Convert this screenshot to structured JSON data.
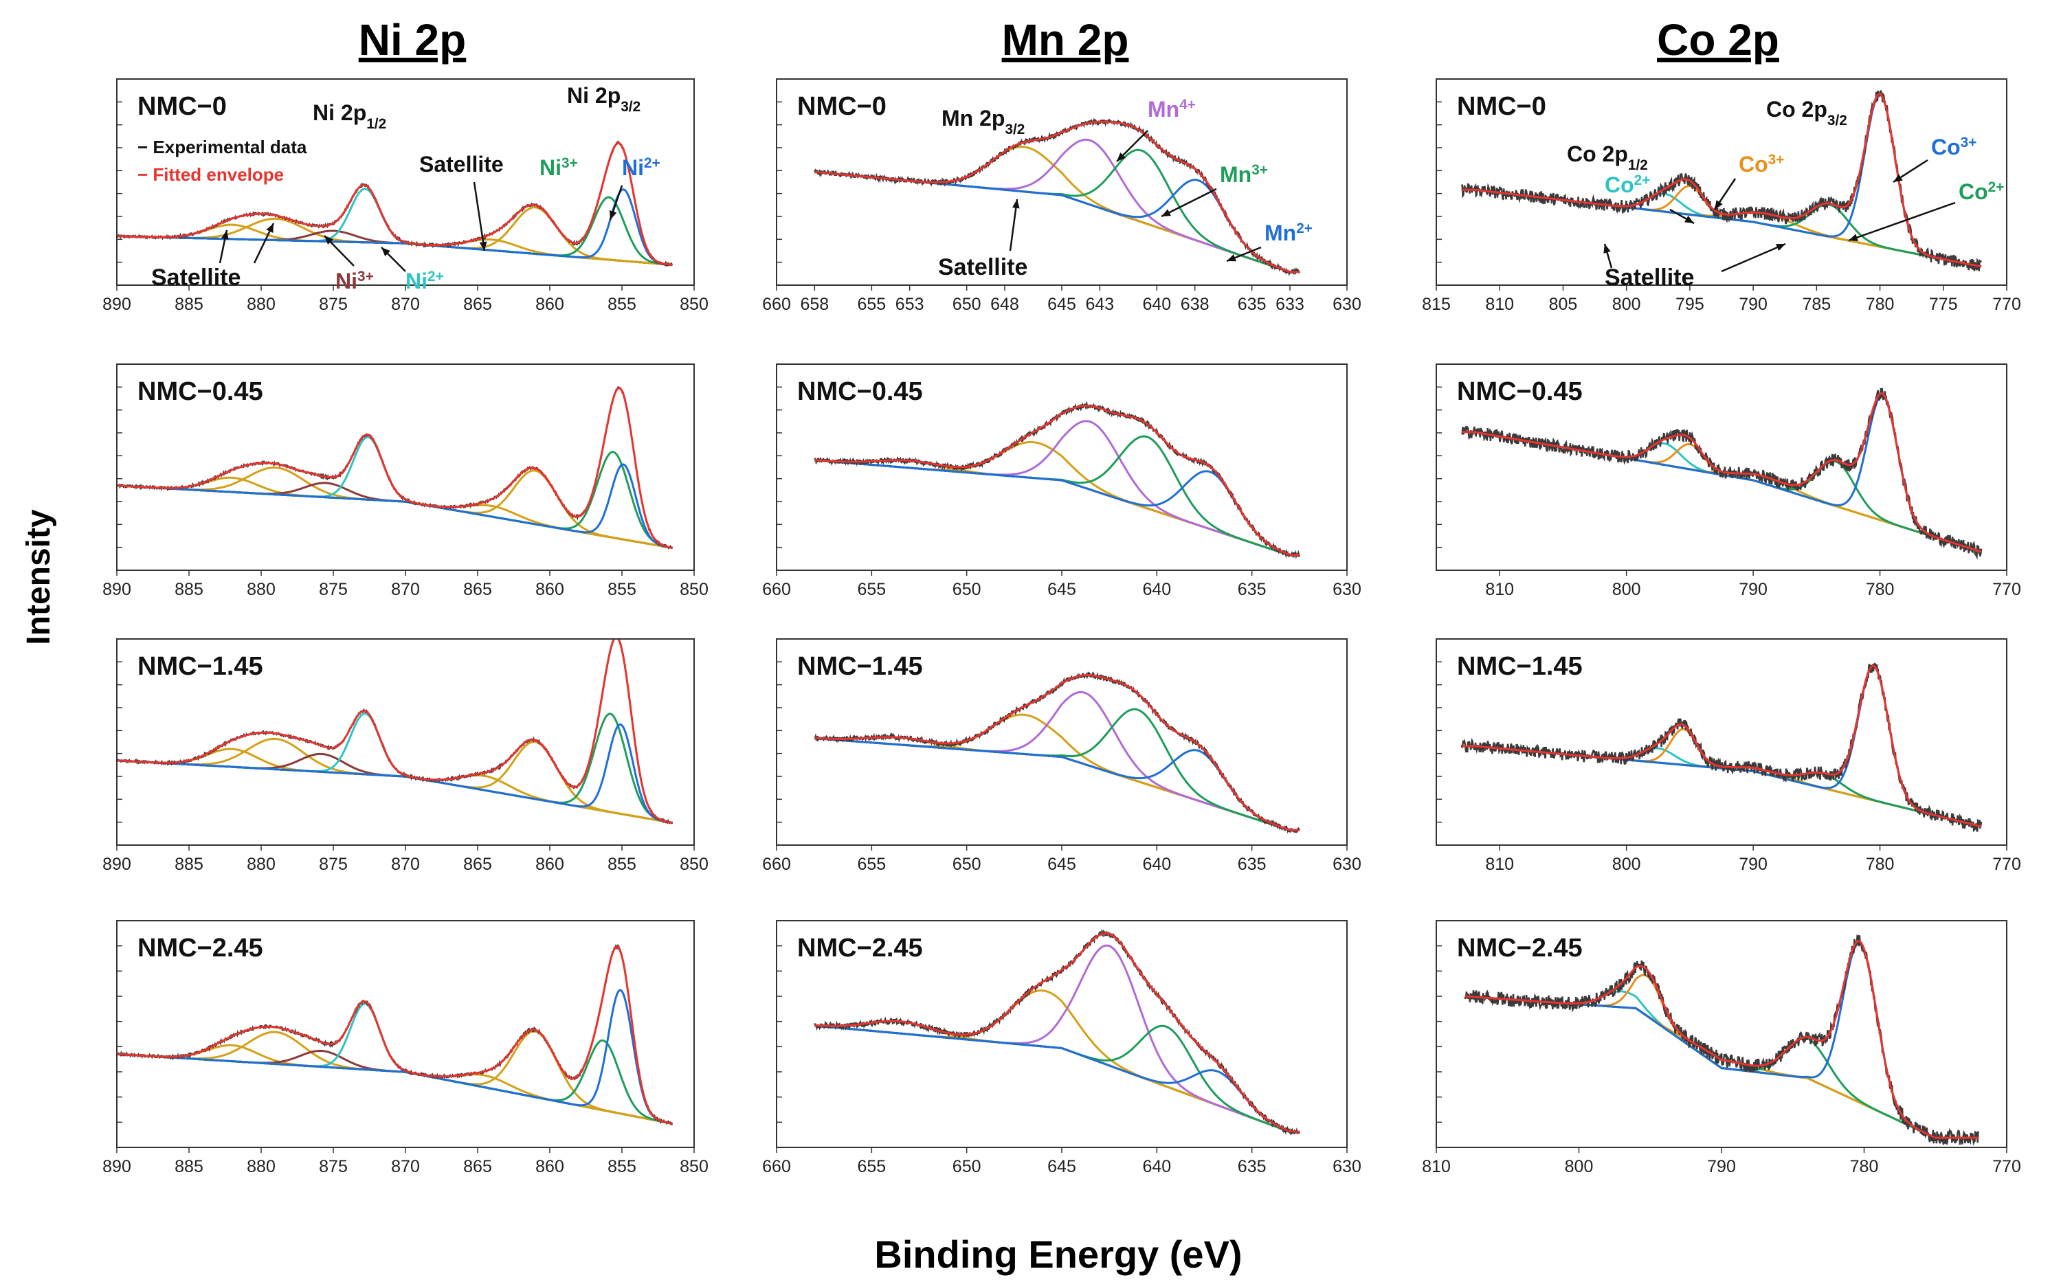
{
  "figure": {
    "ylabel": "Intensity",
    "xlabel": "Binding Energy (eV)"
  },
  "colors": {
    "experimental": "#3b3b3b",
    "envelope": "#e8342e",
    "background_ni": "#5b9bd5",
    "background_mn": "#8b3a2e",
    "background_co": "#8f8f00",
    "satellite": "#d4a017",
    "ni3": "#1e9e5a",
    "ni2": "#1f6fd6",
    "ni2_half": "#2ec4c4",
    "mn4": "#b06bd6",
    "co3": "#e8901a",
    "co2": "#2ec4c4"
  },
  "chart_data": [
    {
      "type": "line",
      "element": "Ni 2p",
      "column_title": "Ni 2p",
      "sample": "NMC−0",
      "xlim": [
        890,
        850
      ],
      "xticks": [
        890,
        885,
        880,
        875,
        870,
        865,
        860,
        855,
        850
      ],
      "legend": [
        "− Experimental data",
        "− Fitted envelope"
      ],
      "annotations": {
        "ni2p12": "Ni 2p1/2",
        "ni2p32": "Ni 2p3/2",
        "satellite_left": "Satellite",
        "satellite_right": "Satellite",
        "ni3_left": "Ni3+",
        "ni2_left": "Ni2+",
        "ni3_right": "Ni3+",
        "ni2_right": "Ni2+"
      },
      "background": [
        [
          890,
          0.22
        ],
        [
          870,
          0.18
        ],
        [
          850,
          0.05
        ]
      ],
      "peaks": [
        {
          "name": "Satellite",
          "center": 882.0,
          "fwhm": 4.0,
          "height": 0.08
        },
        {
          "name": "Satellite",
          "center": 879.0,
          "fwhm": 4.5,
          "height": 0.12
        },
        {
          "name": "Ni3+",
          "center": 875.0,
          "fwhm": 3.5,
          "height": 0.06
        },
        {
          "name": "Ni2+",
          "center": 872.8,
          "fwhm": 2.4,
          "height": 0.3
        },
        {
          "name": "Satellite",
          "center": 864.0,
          "fwhm": 4.0,
          "height": 0.06
        },
        {
          "name": "Satellite",
          "center": 861.0,
          "fwhm": 3.5,
          "height": 0.26
        },
        {
          "name": "Ni3+",
          "center": 855.9,
          "fwhm": 2.5,
          "height": 0.35
        },
        {
          "name": "Ni2+",
          "center": 854.9,
          "fwhm": 2.0,
          "height": 0.4
        }
      ]
    },
    {
      "type": "line",
      "element": "Mn 2p",
      "column_title": "Mn 2p",
      "sample": "NMC−0",
      "xlim": [
        660,
        630
      ],
      "xticks": [
        660,
        658,
        655,
        653,
        650,
        648,
        645,
        643,
        640,
        638,
        635,
        633,
        630
      ],
      "annotations": {
        "mn2p32": "Mn 2p3/2",
        "satellite": "Satellite",
        "mn4": "Mn4+",
        "mn3": "Mn3+",
        "mn2": "Mn2+"
      },
      "background": [
        [
          660,
          0.6
        ],
        [
          645,
          0.45
        ],
        [
          633,
          0.02
        ]
      ],
      "peaks": [
        {
          "name": "Satellite",
          "center": 647.0,
          "fwhm": 4.0,
          "height": 0.25
        },
        {
          "name": "Mn4+",
          "center": 643.5,
          "fwhm": 3.6,
          "height": 0.36
        },
        {
          "name": "Mn3+",
          "center": 640.8,
          "fwhm": 3.4,
          "height": 0.4
        },
        {
          "name": "Mn2+",
          "center": 637.8,
          "fwhm": 3.2,
          "height": 0.34
        }
      ]
    },
    {
      "type": "line",
      "element": "Co 2p",
      "column_title": "Co 2p",
      "sample": "NMC−0",
      "xlim": [
        815,
        770
      ],
      "xticks": [
        815,
        810,
        805,
        800,
        795,
        790,
        785,
        780,
        775,
        770
      ],
      "annotations": {
        "co2p12": "Co 2p1/2",
        "co2p32": "Co 2p3/2",
        "satellite": "Satellite",
        "co2_left": "Co2+",
        "co3_left": "Co3+",
        "co3_right": "Co3+",
        "co2_right": "Co2+"
      },
      "background": [
        [
          812,
          0.48
        ],
        [
          790,
          0.3
        ],
        [
          772,
          0.05
        ]
      ],
      "peaks": [
        {
          "name": "Co2+",
          "center": 797.0,
          "fwhm": 3.0,
          "height": 0.1
        },
        {
          "name": "Co3+",
          "center": 795.0,
          "fwhm": 2.5,
          "height": 0.16
        },
        {
          "name": "Satellite",
          "center": 789.0,
          "fwhm": 5.0,
          "height": 0.06
        },
        {
          "name": "Co2+",
          "center": 784.0,
          "fwhm": 3.5,
          "height": 0.18
        },
        {
          "name": "Co3+",
          "center": 780.0,
          "fwhm": 2.8,
          "height": 0.85
        }
      ]
    },
    {
      "type": "line",
      "element": "Ni 2p",
      "sample": "NMC−0.45",
      "xlim": [
        890,
        850
      ],
      "xticks": [
        890,
        885,
        880,
        875,
        870,
        865,
        860,
        855,
        850
      ],
      "background": [
        [
          890,
          0.42
        ],
        [
          870,
          0.33
        ],
        [
          850,
          0.05
        ]
      ],
      "peaks": [
        {
          "name": "Satellite",
          "center": 882.0,
          "fwhm": 4.0,
          "height": 0.08
        },
        {
          "name": "Satellite",
          "center": 879.0,
          "fwhm": 4.5,
          "height": 0.15
        },
        {
          "name": "Ni3+",
          "center": 875.5,
          "fwhm": 3.5,
          "height": 0.08
        },
        {
          "name": "Ni2+",
          "center": 872.6,
          "fwhm": 2.4,
          "height": 0.35
        },
        {
          "name": "Satellite",
          "center": 864.0,
          "fwhm": 4.0,
          "height": 0.06
        },
        {
          "name": "Satellite",
          "center": 861.0,
          "fwhm": 3.5,
          "height": 0.3
        },
        {
          "name": "Ni3+",
          "center": 855.6,
          "fwhm": 2.6,
          "height": 0.48
        },
        {
          "name": "Ni2+",
          "center": 854.9,
          "fwhm": 2.0,
          "height": 0.42
        }
      ]
    },
    {
      "type": "line",
      "element": "Mn 2p",
      "sample": "NMC−0.45",
      "xlim": [
        660,
        630
      ],
      "xticks": [
        660,
        655,
        650,
        645,
        640,
        635,
        630
      ],
      "background": [
        [
          660,
          0.58
        ],
        [
          645,
          0.45
        ],
        [
          633,
          0.03
        ]
      ],
      "peaks": [
        {
          "name": "Satellite",
          "center": 653.0,
          "fwhm": 4.0,
          "height": 0.04
        },
        {
          "name": "Satellite",
          "center": 646.5,
          "fwhm": 4.0,
          "height": 0.2
        },
        {
          "name": "Mn4+",
          "center": 643.5,
          "fwhm": 3.6,
          "height": 0.38
        },
        {
          "name": "Mn3+",
          "center": 640.5,
          "fwhm": 3.4,
          "height": 0.4
        },
        {
          "name": "Mn2+",
          "center": 637.2,
          "fwhm": 3.2,
          "height": 0.32
        }
      ]
    },
    {
      "type": "line",
      "element": "Co 2p",
      "sample": "NMC−0.45",
      "xlim": [
        815,
        770
      ],
      "xticks": [
        810,
        800,
        790,
        780,
        770
      ],
      "background": [
        [
          812,
          0.72
        ],
        [
          790,
          0.45
        ],
        [
          772,
          0.05
        ]
      ],
      "peaks": [
        {
          "name": "Co2+",
          "center": 797.0,
          "fwhm": 3.0,
          "height": 0.12
        },
        {
          "name": "Co3+",
          "center": 795.0,
          "fwhm": 2.5,
          "height": 0.14
        },
        {
          "name": "Satellite",
          "center": 789.0,
          "fwhm": 5.0,
          "height": 0.04
        },
        {
          "name": "Co2+",
          "center": 783.5,
          "fwhm": 3.5,
          "height": 0.25
        },
        {
          "name": "Co3+",
          "center": 779.8,
          "fwhm": 2.8,
          "height": 0.7
        }
      ]
    },
    {
      "type": "line",
      "element": "Ni 2p",
      "sample": "NMC−1.45",
      "xlim": [
        890,
        850
      ],
      "xticks": [
        890,
        885,
        880,
        875,
        870,
        865,
        860,
        855,
        850
      ],
      "background": [
        [
          890,
          0.42
        ],
        [
          870,
          0.33
        ],
        [
          850,
          0.05
        ]
      ],
      "peaks": [
        {
          "name": "Satellite",
          "center": 882.0,
          "fwhm": 4.0,
          "height": 0.1
        },
        {
          "name": "Satellite",
          "center": 879.0,
          "fwhm": 4.5,
          "height": 0.17
        },
        {
          "name": "Ni3+",
          "center": 875.8,
          "fwhm": 3.5,
          "height": 0.1
        },
        {
          "name": "Ni2+",
          "center": 872.8,
          "fwhm": 2.4,
          "height": 0.34
        },
        {
          "name": "Satellite",
          "center": 864.5,
          "fwhm": 4.0,
          "height": 0.08
        },
        {
          "name": "Satellite",
          "center": 861.0,
          "fwhm": 3.5,
          "height": 0.32
        },
        {
          "name": "Ni3+",
          "center": 855.8,
          "fwhm": 2.6,
          "height": 0.55
        },
        {
          "name": "Ni2+",
          "center": 855.1,
          "fwhm": 2.0,
          "height": 0.5
        }
      ]
    },
    {
      "type": "line",
      "element": "Mn 2p",
      "sample": "NMC−1.45",
      "xlim": [
        660,
        630
      ],
      "xticks": [
        660,
        655,
        650,
        645,
        640,
        635,
        630
      ],
      "background": [
        [
          660,
          0.56
        ],
        [
          645,
          0.44
        ],
        [
          633,
          0.03
        ]
      ],
      "peaks": [
        {
          "name": "Satellite",
          "center": 653.5,
          "fwhm": 4.0,
          "height": 0.04
        },
        {
          "name": "Satellite",
          "center": 647.0,
          "fwhm": 4.0,
          "height": 0.22
        },
        {
          "name": "Mn4+",
          "center": 643.8,
          "fwhm": 3.6,
          "height": 0.4
        },
        {
          "name": "Mn3+",
          "center": 641.0,
          "fwhm": 3.4,
          "height": 0.4
        },
        {
          "name": "Mn2+",
          "center": 637.8,
          "fwhm": 3.2,
          "height": 0.28
        }
      ]
    },
    {
      "type": "line",
      "element": "Co 2p",
      "sample": "NMC−1.45",
      "xlim": [
        815,
        770
      ],
      "xticks": [
        810,
        800,
        790,
        780,
        770
      ],
      "background": [
        [
          812,
          0.5
        ],
        [
          790,
          0.36
        ],
        [
          772,
          0.05
        ]
      ],
      "peaks": [
        {
          "name": "Co2+",
          "center": 797.5,
          "fwhm": 3.0,
          "height": 0.08
        },
        {
          "name": "Co3+",
          "center": 795.5,
          "fwhm": 2.4,
          "height": 0.2
        },
        {
          "name": "Satellite",
          "center": 789.5,
          "fwhm": 5.0,
          "height": 0.02
        },
        {
          "name": "Co2+",
          "center": 784.5,
          "fwhm": 3.5,
          "height": 0.08
        },
        {
          "name": "Co3+",
          "center": 780.5,
          "fwhm": 2.8,
          "height": 0.75
        }
      ]
    },
    {
      "type": "line",
      "element": "Ni 2p",
      "sample": "NMC−2.45",
      "xlim": [
        890,
        850
      ],
      "xticks": [
        890,
        885,
        880,
        875,
        870,
        865,
        860,
        855,
        850
      ],
      "background": [
        [
          890,
          0.42
        ],
        [
          870,
          0.33
        ],
        [
          850,
          0.05
        ]
      ],
      "peaks": [
        {
          "name": "Satellite",
          "center": 882.0,
          "fwhm": 4.0,
          "height": 0.08
        },
        {
          "name": "Satellite",
          "center": 879.0,
          "fwhm": 4.5,
          "height": 0.16
        },
        {
          "name": "Ni3+",
          "center": 875.8,
          "fwhm": 3.5,
          "height": 0.08
        },
        {
          "name": "Ni2+",
          "center": 872.8,
          "fwhm": 2.4,
          "height": 0.33
        },
        {
          "name": "Satellite",
          "center": 864.5,
          "fwhm": 4.0,
          "height": 0.06
        },
        {
          "name": "Satellite",
          "center": 861.0,
          "fwhm": 3.5,
          "height": 0.33
        },
        {
          "name": "Ni3+",
          "center": 856.3,
          "fwhm": 2.6,
          "height": 0.35
        },
        {
          "name": "Ni2+",
          "center": 855.1,
          "fwhm": 2.0,
          "height": 0.62
        }
      ]
    },
    {
      "type": "line",
      "element": "Mn 2p",
      "sample": "NMC−2.45",
      "xlim": [
        660,
        630
      ],
      "xticks": [
        660,
        655,
        650,
        645,
        640,
        635,
        630
      ],
      "background": [
        [
          660,
          0.58
        ],
        [
          645,
          0.45
        ],
        [
          633,
          0.03
        ]
      ],
      "peaks": [
        {
          "name": "Satellite",
          "center": 653.5,
          "fwhm": 4.0,
          "height": 0.06
        },
        {
          "name": "Satellite",
          "center": 646.0,
          "fwhm": 4.0,
          "height": 0.28
        },
        {
          "name": "Mn4+",
          "center": 642.5,
          "fwhm": 3.6,
          "height": 0.6
        },
        {
          "name": "Mn3+",
          "center": 639.5,
          "fwhm": 3.2,
          "height": 0.3
        },
        {
          "name": "Mn2+",
          "center": 636.8,
          "fwhm": 3.0,
          "height": 0.17
        }
      ]
    },
    {
      "type": "line",
      "element": "Co 2p",
      "sample": "NMC−2.45",
      "xlim": [
        810,
        770
      ],
      "xticks": [
        810,
        800,
        790,
        780,
        770
      ],
      "background": [
        [
          810,
          0.72
        ],
        [
          796,
          0.65
        ],
        [
          790,
          0.35
        ],
        [
          784,
          0.3
        ],
        [
          775,
          0.0
        ]
      ],
      "peaks": [
        {
          "name": "Co2+",
          "center": 797.0,
          "fwhm": 3.0,
          "height": 0.08
        },
        {
          "name": "Co3+",
          "center": 795.2,
          "fwhm": 2.4,
          "height": 0.2
        },
        {
          "name": "Satellite",
          "center": 790.0,
          "fwhm": 5.0,
          "height": 0.04
        },
        {
          "name": "Co2+",
          "center": 784.0,
          "fwhm": 3.5,
          "height": 0.2
        },
        {
          "name": "Co3+",
          "center": 780.3,
          "fwhm": 2.8,
          "height": 0.8
        }
      ]
    }
  ]
}
